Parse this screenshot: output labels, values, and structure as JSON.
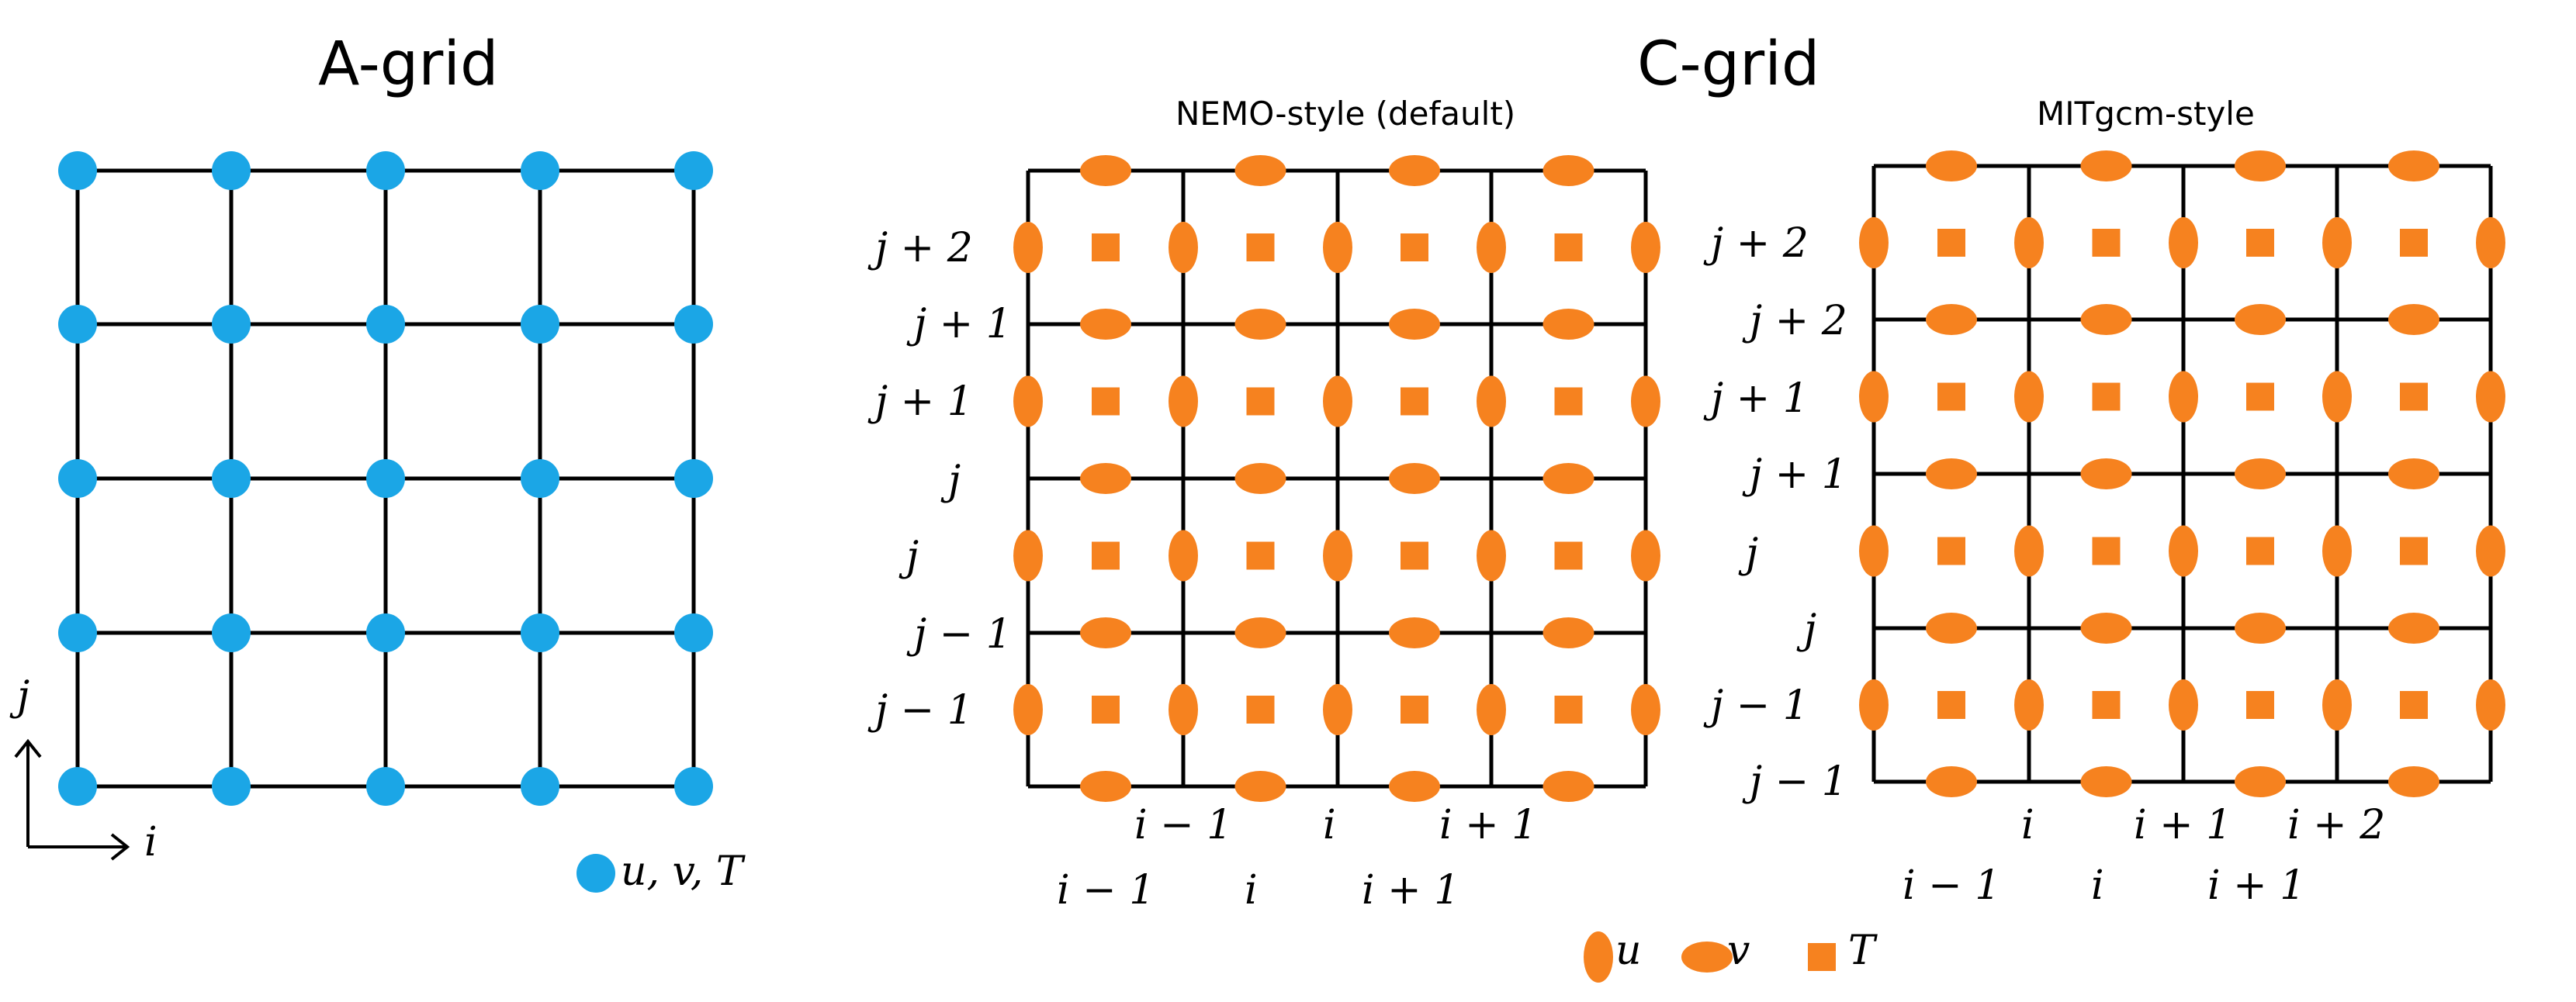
{
  "colors": {
    "agrid_node": "#1ba6e6",
    "cgrid_node": "#f6821f",
    "grid_line": "#000000"
  },
  "agrid": {
    "title": "A-grid",
    "axis_i": "i",
    "axis_j": "j",
    "legend": "u, v, T"
  },
  "cgrid": {
    "title": "C-grid",
    "nemo": {
      "subtitle": "NEMO-style (default)",
      "row_labels": [
        "j + 2",
        "j + 1",
        "j + 1",
        "j",
        "j",
        "j − 1",
        "j − 1"
      ],
      "col_labels_upper": [
        "i − 1",
        "i",
        "i + 1"
      ],
      "col_labels_lower": [
        "i − 1",
        "i",
        "i + 1"
      ]
    },
    "mitgcm": {
      "subtitle": "MITgcm-style",
      "row_labels": [
        "j + 2",
        "j + 2",
        "j + 1",
        "j + 1",
        "j",
        "j",
        "j − 1",
        "j − 1"
      ],
      "col_labels_upper": [
        "i",
        "i + 1",
        "i + 2"
      ],
      "col_labels_lower": [
        "i − 1",
        "i",
        "i + 1"
      ]
    },
    "legend": {
      "u": "u",
      "v": "v",
      "T": "T"
    }
  }
}
